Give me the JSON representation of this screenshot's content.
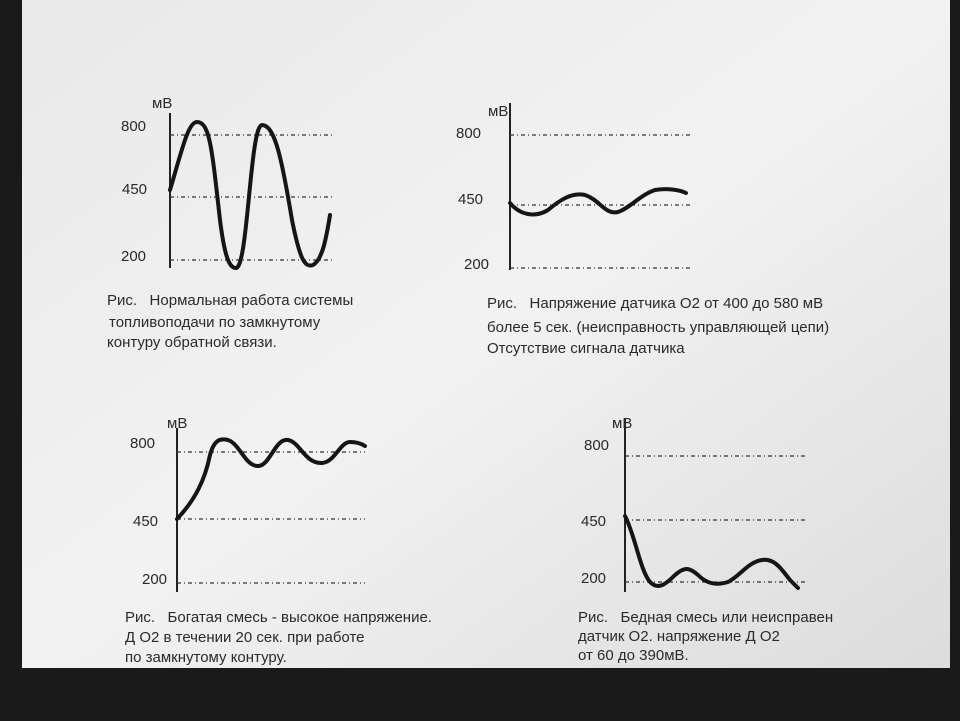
{
  "panels": [
    {
      "unit": "мВ",
      "ticks": [
        "800",
        "450",
        "200"
      ],
      "caption": [
        "Рис.   Нормальная работа системы",
        "топливоподачи по замкнутому",
        "контуру обратной связи."
      ]
    },
    {
      "unit": "мВ",
      "ticks": [
        "800",
        "450",
        "200"
      ],
      "caption": [
        "Рис.   Напряжение датчика О2 от 400 до 580 мВ",
        "более 5 сек. (неисправность управляющей цепи)",
        "Отсутствие сигнала датчика"
      ]
    },
    {
      "unit": "мВ",
      "ticks": [
        "800",
        "450",
        "200"
      ],
      "caption": [
        "Рис.   Богатая смесь - высокое напряжение.",
        "Д О2 в течении 20 сек. при работе",
        "по замкнутому контуру."
      ]
    },
    {
      "unit": "мВ",
      "ticks": [
        "800",
        "450",
        "200"
      ],
      "caption": [
        "Рис.   Бедная смесь или неисправен",
        "датчик О2. напряжение Д О2",
        "от 60 до 390мВ."
      ]
    }
  ]
}
